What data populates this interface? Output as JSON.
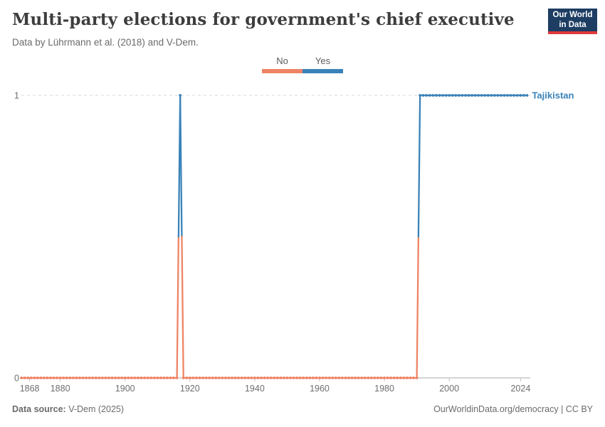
{
  "header": {
    "title": "Multi-party elections for government's chief executive",
    "subtitle": "Data by Lührmann et al. (2018) and V-Dem.",
    "logo": {
      "line1": "Our World",
      "line2": "in Data",
      "bg_color": "#1d3d63",
      "accent_color": "#e0383c"
    }
  },
  "legend": {
    "items": [
      {
        "label": "No",
        "color": "#ee8465"
      },
      {
        "label": "Yes",
        "color": "#3a82b9"
      }
    ]
  },
  "chart_data": {
    "type": "line",
    "entity": "Tajikistan",
    "entity_color": "#3a82b9",
    "title": "Multi-party elections for government's chief executive",
    "xlabel": "",
    "ylabel": "",
    "x_domain": [
      1868,
      2025
    ],
    "y_domain": [
      0,
      1
    ],
    "x_ticks": [
      1868,
      1880,
      1900,
      1920,
      1940,
      1960,
      1980,
      2000,
      2024
    ],
    "y_ticks": [
      0,
      1
    ],
    "grid": "dashed horizontal gridline at y=1, solid axis at y=0",
    "legend_position": "top-center",
    "value_labels": {
      "0": "No",
      "1": "Yes"
    },
    "value_colors": {
      "0": "#ee8465",
      "1": "#3a82b9"
    },
    "marker": "small circle every year",
    "runs": [
      {
        "start_year": 1868,
        "end_year": 1916,
        "value": 0,
        "label": "No"
      },
      {
        "start_year": 1917,
        "end_year": 1917,
        "value": 1,
        "label": "Yes"
      },
      {
        "start_year": 1918,
        "end_year": 1990,
        "value": 0,
        "label": "No"
      },
      {
        "start_year": 1991,
        "end_year": 2024,
        "value": 1,
        "label": "Yes"
      }
    ]
  },
  "footer": {
    "source_label": "Data source:",
    "source_value": " V-Dem (2025)",
    "credit": "OurWorldinData.org/democracy | CC BY"
  }
}
